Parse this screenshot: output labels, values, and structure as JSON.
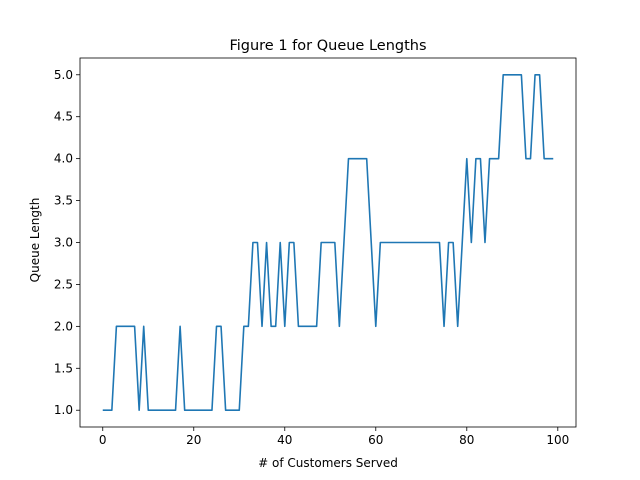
{
  "chart_data": {
    "type": "line",
    "title": "Figure 1 for Queue Lengths",
    "xlabel": "# of Customers Served",
    "ylabel": "Queue Length",
    "xlim": [
      -5,
      104
    ],
    "ylim": [
      0.8,
      5.2
    ],
    "xticks": [
      0,
      20,
      40,
      60,
      80,
      100
    ],
    "yticks": [
      1.0,
      1.5,
      2.0,
      2.5,
      3.0,
      3.5,
      4.0,
      4.5,
      5.0
    ],
    "grid": false,
    "series": [
      {
        "color": "#1f77b4",
        "x": [
          0,
          1,
          2,
          3,
          4,
          5,
          6,
          7,
          8,
          9,
          10,
          11,
          12,
          13,
          14,
          15,
          16,
          17,
          18,
          19,
          20,
          21,
          22,
          23,
          24,
          25,
          26,
          27,
          28,
          29,
          30,
          31,
          32,
          33,
          34,
          35,
          36,
          37,
          38,
          39,
          40,
          41,
          42,
          43,
          44,
          45,
          46,
          47,
          48,
          49,
          50,
          51,
          52,
          53,
          54,
          55,
          56,
          57,
          58,
          59,
          60,
          61,
          62,
          63,
          64,
          65,
          66,
          67,
          68,
          69,
          70,
          71,
          72,
          73,
          74,
          75,
          76,
          77,
          78,
          79,
          80,
          81,
          82,
          83,
          84,
          85,
          86,
          87,
          88,
          89,
          90,
          91,
          92,
          93,
          94,
          95,
          96,
          97,
          98,
          99
        ],
        "y": [
          1,
          1,
          1,
          2,
          2,
          2,
          2,
          2,
          1,
          2,
          1,
          1,
          1,
          1,
          1,
          1,
          1,
          2,
          1,
          1,
          1,
          1,
          1,
          1,
          1,
          2,
          2,
          1,
          1,
          1,
          1,
          2,
          2,
          3,
          3,
          2,
          3,
          2,
          2,
          3,
          2,
          3,
          3,
          2,
          2,
          2,
          2,
          2,
          3,
          3,
          3,
          3,
          2,
          3,
          4,
          4,
          4,
          4,
          4,
          3,
          2,
          3,
          3,
          3,
          3,
          3,
          3,
          3,
          3,
          3,
          3,
          3,
          3,
          3,
          3,
          2,
          3,
          3,
          2,
          3,
          4,
          3,
          4,
          4,
          3,
          4,
          4,
          4,
          5,
          5,
          5,
          5,
          5,
          4,
          4,
          5,
          5,
          4,
          4,
          4
        ]
      }
    ]
  }
}
